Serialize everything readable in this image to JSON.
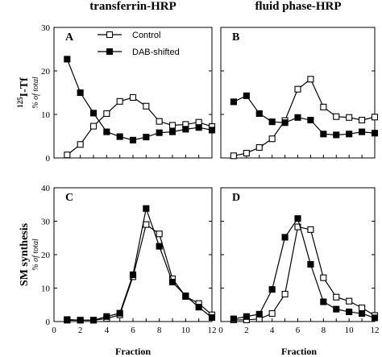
{
  "column_titles": [
    "transferrin-HRP",
    "fluid phase-HRP"
  ],
  "row_labels": [
    {
      "prefix": "125",
      "main": "I-Tf",
      "sub": "% of total"
    },
    {
      "prefix": "",
      "main": "SM synthesis",
      "sub": "% of total"
    }
  ],
  "legend": [
    "Control",
    "DAB-shifted"
  ],
  "xlabel": "Fraction",
  "chart_data": [
    {
      "type": "line",
      "panel": "A",
      "x": [
        1,
        2,
        3,
        4,
        5,
        6,
        7,
        8,
        9,
        10,
        11,
        12
      ],
      "xlim": [
        0,
        12
      ],
      "ylim": [
        0,
        30
      ],
      "xticks": [
        "0",
        "2",
        "4",
        "6",
        "8",
        "10",
        "12"
      ],
      "yticks": [
        "0",
        "10",
        "20",
        "30"
      ],
      "series": [
        {
          "name": "Control",
          "marker": "open-square",
          "values": [
            0.7,
            3.1,
            7.3,
            10.2,
            13.0,
            13.9,
            11.9,
            8.4,
            7.5,
            7.7,
            8.2,
            7.2
          ]
        },
        {
          "name": "DAB-shifted",
          "marker": "filled-square",
          "values": [
            22.7,
            15.0,
            10.3,
            6.0,
            4.9,
            4.1,
            4.8,
            5.8,
            6.0,
            6.6,
            7.0,
            6.4
          ]
        }
      ]
    },
    {
      "type": "line",
      "panel": "B",
      "x": [
        1,
        2,
        3,
        4,
        5,
        6,
        7,
        8,
        9,
        10,
        11,
        12
      ],
      "xlim": [
        0,
        12
      ],
      "ylim": [
        0,
        30
      ],
      "xticks": [
        "0",
        "2",
        "4",
        "6",
        "8",
        "10",
        "12"
      ],
      "yticks": [
        "0",
        "10",
        "20",
        "30"
      ],
      "series": [
        {
          "name": "Control",
          "marker": "open-square",
          "values": [
            0.5,
            1.1,
            2.4,
            4.4,
            8.6,
            15.8,
            18.1,
            11.7,
            9.5,
            9.3,
            8.7,
            9.4
          ]
        },
        {
          "name": "DAB-shifted",
          "marker": "filled-square",
          "values": [
            12.9,
            14.3,
            10.2,
            8.3,
            8.1,
            9.3,
            8.7,
            5.5,
            5.3,
            5.5,
            6.0,
            5.7
          ]
        }
      ]
    },
    {
      "type": "line",
      "panel": "C",
      "x": [
        1,
        2,
        3,
        4,
        5,
        6,
        7,
        8,
        9,
        10,
        11,
        12
      ],
      "xlim": [
        0,
        12
      ],
      "ylim": [
        0,
        40
      ],
      "xticks": [
        "0",
        "2",
        "4",
        "6",
        "8",
        "10",
        "12"
      ],
      "yticks": [
        "0",
        "10",
        "20",
        "30",
        "40"
      ],
      "series": [
        {
          "name": "Control",
          "marker": "open-square",
          "values": [
            0.4,
            0.4,
            0.4,
            0.9,
            2.0,
            13.4,
            29.0,
            26.2,
            12.8,
            7.5,
            5.4,
            2.0
          ]
        },
        {
          "name": "DAB-shifted",
          "marker": "filled-square",
          "values": [
            0.6,
            0.4,
            0.4,
            1.5,
            2.5,
            14.0,
            33.8,
            22.5,
            11.8,
            7.7,
            4.3,
            1.2
          ]
        }
      ]
    },
    {
      "type": "line",
      "panel": "D",
      "x": [
        1,
        2,
        3,
        4,
        5,
        6,
        7,
        8,
        9,
        10,
        11,
        12
      ],
      "xlim": [
        0,
        12
      ],
      "ylim": [
        0,
        40
      ],
      "xticks": [
        "0",
        "2",
        "4",
        "6",
        "8",
        "10",
        "12"
      ],
      "yticks": [
        "0",
        "10",
        "20",
        "30",
        "40"
      ],
      "series": [
        {
          "name": "Control",
          "marker": "open-square",
          "values": [
            0.5,
            0.5,
            0.8,
            2.4,
            8.2,
            28.3,
            27.5,
            13.1,
            7.3,
            6.1,
            4.1,
            1.8
          ]
        },
        {
          "name": "DAB-shifted",
          "marker": "filled-square",
          "values": [
            0.8,
            1.5,
            2.2,
            9.6,
            25.2,
            30.8,
            17.1,
            5.9,
            3.7,
            2.9,
            2.4,
            1.1
          ]
        }
      ]
    }
  ]
}
